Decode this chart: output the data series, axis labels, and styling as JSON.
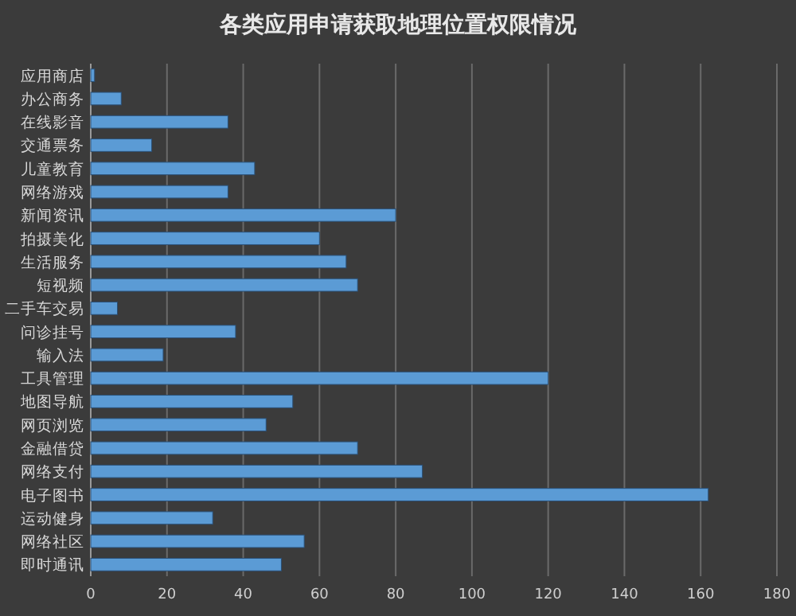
{
  "chart_data": {
    "type": "bar",
    "orientation": "horizontal",
    "title": "各类应用申请获取地理位置权限情况",
    "categories": [
      "应用商店",
      "办公商务",
      "在线影音",
      "交通票务",
      "儿童教育",
      "网络游戏",
      "新闻资讯",
      "拍摄美化",
      "生活服务",
      "短视频",
      "二手车交易",
      "问诊挂号",
      "输入法",
      "工具管理",
      "地图导航",
      "网页浏览",
      "金融借贷",
      "网络支付",
      "电子图书",
      "运动健身",
      "网络社区",
      "即时通讯"
    ],
    "values": [
      1,
      8,
      36,
      16,
      43,
      36,
      80,
      60,
      67,
      70,
      7,
      38,
      19,
      120,
      53,
      46,
      70,
      87,
      162,
      32,
      56,
      50
    ],
    "color": "#5b9bd5",
    "xlim": [
      0,
      180
    ],
    "xticks": [
      0,
      20,
      40,
      60,
      80,
      100,
      120,
      140,
      160,
      180
    ],
    "grid": "x"
  }
}
